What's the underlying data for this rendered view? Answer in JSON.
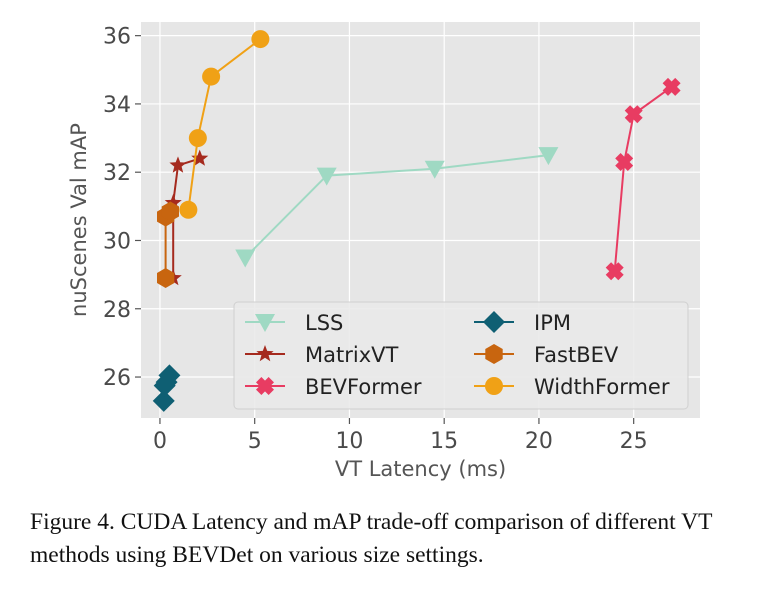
{
  "chart_data": {
    "type": "line",
    "xlabel": "VT Latency (ms)",
    "ylabel": "nuScenes Val mAP",
    "xlim": [
      -1,
      28.5
    ],
    "ylim": [
      24.8,
      36.4
    ],
    "xticks": [
      0,
      5,
      10,
      15,
      20,
      25
    ],
    "yticks": [
      26,
      28,
      30,
      32,
      34,
      36
    ],
    "grid": true,
    "legend_position": "lower-right",
    "series": [
      {
        "name": "LSS",
        "color": "#9fd9c3",
        "marker": "triangle-down",
        "x": [
          4.5,
          8.8,
          14.5,
          20.5
        ],
        "y": [
          29.5,
          31.9,
          32.1,
          32.5
        ]
      },
      {
        "name": "IPM",
        "color": "#0f5f73",
        "marker": "diamond",
        "x": [
          0.2,
          0.25,
          0.35,
          0.5
        ],
        "y": [
          25.3,
          25.75,
          25.85,
          26.05
        ]
      },
      {
        "name": "MatrixVT",
        "color": "#a52a1e",
        "marker": "star",
        "x": [
          0.7,
          0.7,
          0.95,
          2.1
        ],
        "y": [
          28.9,
          31.1,
          32.2,
          32.4
        ]
      },
      {
        "name": "FastBEV",
        "color": "#c8650f",
        "marker": "hexagon",
        "x": [
          0.3,
          0.3,
          0.55
        ],
        "y": [
          28.9,
          30.7,
          30.85
        ]
      },
      {
        "name": "BEVFormer",
        "color": "#e83c62",
        "marker": "x",
        "x": [
          24.0,
          24.5,
          25.0,
          27.0
        ],
        "y": [
          29.1,
          32.3,
          33.7,
          34.5
        ]
      },
      {
        "name": "WidthFormer",
        "color": "#f0a116",
        "marker": "circle",
        "x": [
          1.5,
          2.0,
          2.7,
          5.3
        ],
        "y": [
          30.9,
          33.0,
          34.8,
          35.9
        ]
      }
    ]
  },
  "caption": "Figure 4.  CUDA Latency and mAP trade-off comparison of different VT methods using BEVDet on various size settings."
}
